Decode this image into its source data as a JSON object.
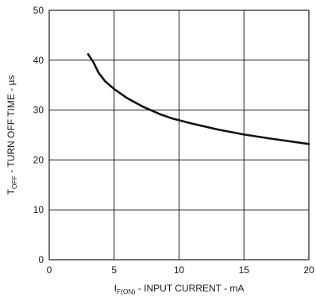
{
  "chart_data": {
    "type": "line",
    "title": "",
    "xlabel": {
      "symbol": "I",
      "subscript": "F(ON)",
      "text": " - INPUT CURRENT - mA"
    },
    "ylabel": {
      "symbol": "T",
      "subscript": "OFF",
      "text": " - TURN OFF TIME - µs"
    },
    "xlim": [
      0,
      20
    ],
    "ylim": [
      0,
      50
    ],
    "xticks": [
      0,
      5,
      10,
      15,
      20
    ],
    "yticks": [
      0,
      10,
      20,
      30,
      40,
      50
    ],
    "grid": true,
    "series": [
      {
        "color": "#111111",
        "x": [
          3.0,
          3.4,
          3.8,
          4.3,
          5.0,
          6.0,
          7.2,
          8.5,
          9.5,
          11,
          13,
          15,
          17,
          20
        ],
        "y": [
          41.2,
          39.6,
          37.5,
          35.8,
          34.2,
          32.4,
          30.7,
          29.2,
          28.3,
          27.3,
          26.1,
          25.1,
          24.3,
          23.2
        ]
      }
    ]
  }
}
